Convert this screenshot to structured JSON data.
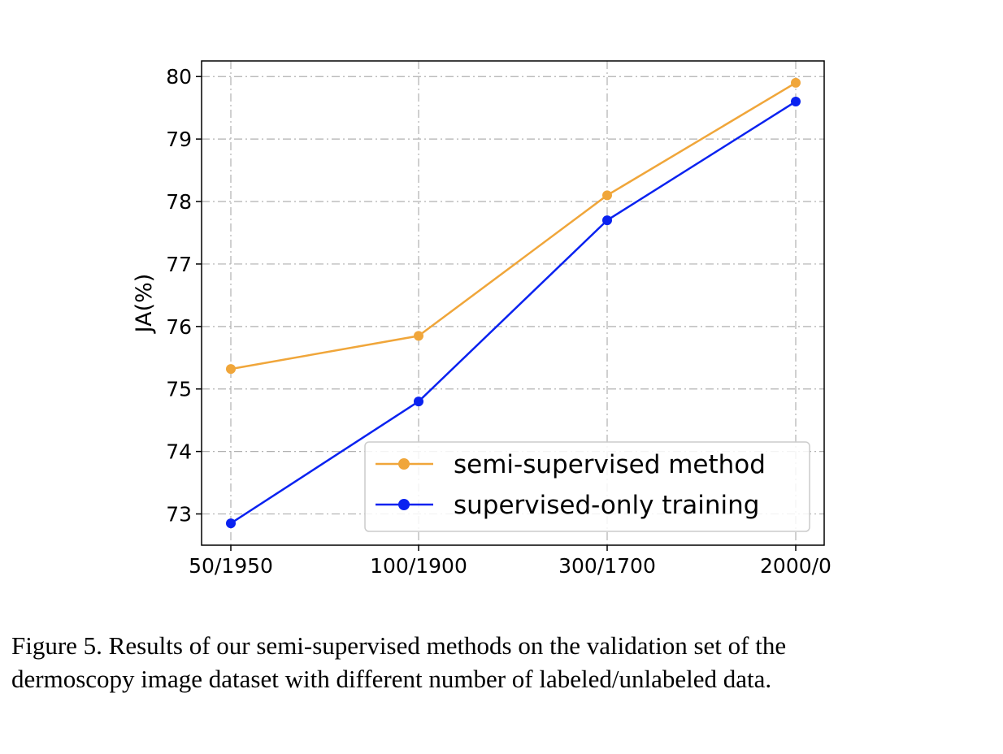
{
  "caption": {
    "line1": "Figure 5.  Results of our semi-supervised methods on the validation set of the",
    "line2": "dermoscopy image dataset with different number of labeled/unlabeled data."
  },
  "chart_data": {
    "type": "line",
    "categories": [
      "50/1950",
      "100/1900",
      "300/1700",
      "2000/0"
    ],
    "ylabel": "JA(%)",
    "xlabel": "",
    "title": "",
    "ylim": [
      72.5,
      80.25
    ],
    "yticks": [
      73,
      74,
      75,
      76,
      77,
      78,
      79,
      80
    ],
    "grid": true,
    "grid_style": "dash-dot",
    "legend_position": "lower-right",
    "series": [
      {
        "name": "semi-supervised method",
        "color": "#f0a63a",
        "marker": "circle",
        "values": [
          75.32,
          75.85,
          78.1,
          79.9
        ]
      },
      {
        "name": "supervised-only training",
        "color": "#0a22f0",
        "marker": "circle",
        "values": [
          72.85,
          74.8,
          77.7,
          79.6
        ]
      }
    ]
  }
}
